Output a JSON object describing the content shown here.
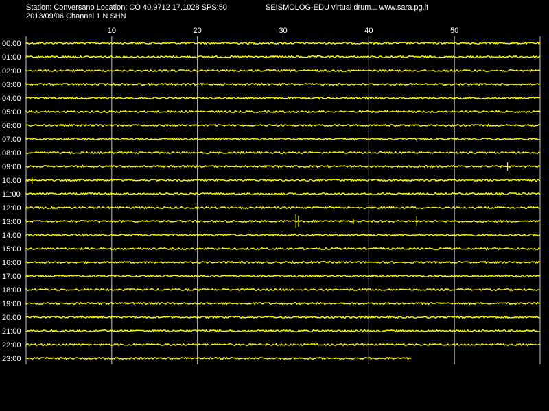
{
  "header": {
    "station_line": "Station: Conversano Location: CO 40.9712 17.1028 SPS:50",
    "date_line": "2013/09/06  Channel 1 N SHN",
    "app_line": "SEISMOLOG-EDU virtual drum... www.sara.pg.it"
  },
  "colors": {
    "background": "#000000",
    "trace": "#ffff00",
    "grid": "#c8c8c8",
    "text": "#ffffff"
  },
  "chart_data": {
    "type": "line",
    "title": "",
    "xlim": [
      0,
      60
    ],
    "x_ticks": [
      "10",
      "20",
      "30",
      "40",
      "50"
    ],
    "hours": [
      "00:00",
      "01:00",
      "02:00",
      "03:00",
      "04:00",
      "05:00",
      "06:00",
      "07:00",
      "08:00",
      "09:00",
      "10:00",
      "11:00",
      "12:00",
      "13:00",
      "14:00",
      "15:00",
      "16:00",
      "17:00",
      "18:00",
      "19:00",
      "20:00",
      "21:00",
      "22:00",
      "23:00"
    ],
    "last_trace_end_minute": 45,
    "events": [
      {
        "hour": "09:00",
        "minute": 56.2,
        "amplitude": 0.6
      },
      {
        "hour": "10:00",
        "minute": 0.7,
        "amplitude": 0.5
      },
      {
        "hour": "13:00",
        "minute": 31.5,
        "amplitude": 1.0
      },
      {
        "hour": "13:00",
        "minute": 31.8,
        "amplitude": 0.8
      },
      {
        "hour": "13:00",
        "minute": 38.2,
        "amplitude": 0.4
      },
      {
        "hour": "13:00",
        "minute": 45.6,
        "amplitude": 0.7
      }
    ]
  }
}
